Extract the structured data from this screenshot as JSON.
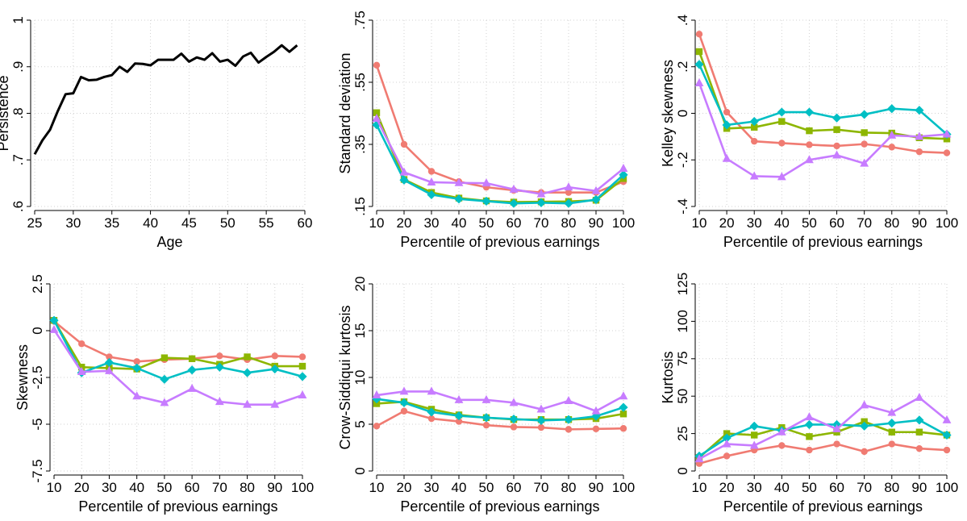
{
  "chart_data": [
    {
      "type": "line",
      "xlabel": "Age",
      "ylabel": "Persistence",
      "xlim": [
        25,
        60
      ],
      "ylim": [
        0.6,
        1
      ],
      "xticks": [
        25,
        30,
        35,
        40,
        45,
        50,
        55,
        60
      ],
      "xtick_labels": [
        "25",
        "30",
        "35",
        "40",
        "45",
        "50",
        "55",
        "60"
      ],
      "yticks": [
        0.6,
        0.7,
        0.8,
        0.9,
        1
      ],
      "ytick_labels": [
        ".6",
        ".7",
        ".8",
        ".9",
        "1"
      ],
      "grid": true,
      "x": [
        25,
        26,
        27,
        28,
        29,
        30,
        31,
        32,
        33,
        34,
        35,
        36,
        37,
        38,
        39,
        40,
        41,
        42,
        43,
        44,
        45,
        46,
        47,
        48,
        49,
        50,
        51,
        52,
        53,
        54,
        55,
        56,
        57,
        58,
        59
      ],
      "series": [
        {
          "values": [
            0.712,
            0.742,
            0.765,
            0.805,
            0.841,
            0.843,
            0.878,
            0.871,
            0.872,
            0.878,
            0.882,
            0.9,
            0.889,
            0.907,
            0.906,
            0.903,
            0.915,
            0.915,
            0.915,
            0.928,
            0.911,
            0.92,
            0.915,
            0.929,
            0.911,
            0.915,
            0.902,
            0.922,
            0.93,
            0.909,
            0.921,
            0.932,
            0.946,
            0.932,
            0.946
          ]
        }
      ]
    },
    {
      "type": "line",
      "xlabel": "Percentile of previous earnings",
      "ylabel": "Standard deviation",
      "xlim": [
        10,
        100
      ],
      "ylim": [
        0.15,
        0.75
      ],
      "xticks": [
        10,
        20,
        30,
        40,
        50,
        60,
        70,
        80,
        90,
        100
      ],
      "xtick_labels": [
        "10",
        "20",
        "30",
        "40",
        "50",
        "60",
        "70",
        "80",
        "90",
        "100"
      ],
      "yticks": [
        0.15,
        0.35,
        0.55,
        0.75
      ],
      "ytick_labels": [
        ".15",
        ".35",
        ".55",
        ".75"
      ],
      "grid": true,
      "x": [
        10,
        20,
        30,
        40,
        50,
        60,
        70,
        80,
        90,
        100
      ],
      "series": [
        {
          "color": "#f07b72",
          "marker": "circle",
          "values": [
            0.605,
            0.35,
            0.263,
            0.23,
            0.212,
            0.202,
            0.195,
            0.195,
            0.195,
            0.23
          ]
        },
        {
          "color": "#8db600",
          "marker": "square",
          "values": [
            0.452,
            0.237,
            0.195,
            0.177,
            0.168,
            0.164,
            0.165,
            0.166,
            0.17,
            0.24
          ]
        },
        {
          "color": "#00bfc4",
          "marker": "diamond",
          "values": [
            0.413,
            0.235,
            0.188,
            0.174,
            0.167,
            0.16,
            0.162,
            0.16,
            0.172,
            0.252
          ]
        },
        {
          "color": "#c77cff",
          "marker": "triangle",
          "values": [
            0.433,
            0.26,
            0.228,
            0.226,
            0.225,
            0.205,
            0.19,
            0.212,
            0.2,
            0.272
          ]
        }
      ]
    },
    {
      "type": "line",
      "xlabel": "Percentile of previous earnings",
      "ylabel": "Kelley skewness",
      "xlim": [
        10,
        100
      ],
      "ylim": [
        -0.4,
        0.4
      ],
      "xticks": [
        10,
        20,
        30,
        40,
        50,
        60,
        70,
        80,
        90,
        100
      ],
      "xtick_labels": [
        "10",
        "20",
        "30",
        "40",
        "50",
        "60",
        "70",
        "80",
        "90",
        "100"
      ],
      "yticks": [
        -0.4,
        -0.2,
        0,
        0.2,
        0.4
      ],
      "ytick_labels": [
        "-.4",
        "-.2",
        "0",
        ".2",
        ".4"
      ],
      "grid": true,
      "x": [
        10,
        20,
        30,
        40,
        50,
        60,
        70,
        80,
        90,
        100
      ],
      "series": [
        {
          "color": "#f07b72",
          "marker": "circle",
          "values": [
            0.34,
            0.005,
            -0.12,
            -0.128,
            -0.135,
            -0.14,
            -0.132,
            -0.145,
            -0.165,
            -0.17
          ]
        },
        {
          "color": "#8db600",
          "marker": "square",
          "values": [
            0.265,
            -0.065,
            -0.06,
            -0.035,
            -0.075,
            -0.07,
            -0.083,
            -0.085,
            -0.105,
            -0.11
          ]
        },
        {
          "color": "#00bfc4",
          "marker": "diamond",
          "values": [
            0.21,
            -0.05,
            -0.035,
            0.005,
            0.005,
            -0.02,
            -0.005,
            0.02,
            0.013,
            -0.09
          ]
        },
        {
          "color": "#c77cff",
          "marker": "triangle",
          "values": [
            0.13,
            -0.195,
            -0.27,
            -0.273,
            -0.2,
            -0.18,
            -0.215,
            -0.095,
            -0.1,
            -0.09
          ]
        }
      ]
    },
    {
      "type": "line",
      "xlabel": "Percentile of previous earnings",
      "ylabel": "Skewness",
      "xlim": [
        10,
        100
      ],
      "ylim": [
        -7.5,
        2.5
      ],
      "xticks": [
        10,
        20,
        30,
        40,
        50,
        60,
        70,
        80,
        90,
        100
      ],
      "xtick_labels": [
        "10",
        "20",
        "30",
        "40",
        "50",
        "60",
        "70",
        "80",
        "90",
        "100"
      ],
      "yticks": [
        -7.5,
        -5,
        -2.5,
        0,
        2.5
      ],
      "ytick_labels": [
        "-7.5",
        "-5",
        "-2.5",
        "0",
        "2.5"
      ],
      "grid": true,
      "x": [
        10,
        20,
        30,
        40,
        50,
        60,
        70,
        80,
        90,
        100
      ],
      "series": [
        {
          "color": "#f07b72",
          "marker": "circle",
          "values": [
            0.5,
            -0.7,
            -1.4,
            -1.65,
            -1.55,
            -1.5,
            -1.35,
            -1.55,
            -1.35,
            -1.4
          ]
        },
        {
          "color": "#8db600",
          "marker": "square",
          "values": [
            0.55,
            -1.95,
            -2.0,
            -2.05,
            -1.45,
            -1.5,
            -1.8,
            -1.4,
            -1.9,
            -1.9
          ]
        },
        {
          "color": "#00bfc4",
          "marker": "diamond",
          "values": [
            0.55,
            -2.25,
            -1.7,
            -2.0,
            -2.6,
            -2.1,
            -1.95,
            -2.25,
            -2.05,
            -2.45
          ]
        },
        {
          "color": "#c77cff",
          "marker": "triangle",
          "values": [
            0.05,
            -2.2,
            -2.15,
            -3.5,
            -3.85,
            -3.1,
            -3.8,
            -3.95,
            -3.95,
            -3.45
          ]
        }
      ]
    },
    {
      "type": "line",
      "xlabel": "Percentile of previous earnings",
      "ylabel": "Crow-Siddiqui kurtosis",
      "xlim": [
        10,
        100
      ],
      "ylim": [
        0,
        20
      ],
      "xticks": [
        10,
        20,
        30,
        40,
        50,
        60,
        70,
        80,
        90,
        100
      ],
      "xtick_labels": [
        "10",
        "20",
        "30",
        "40",
        "50",
        "60",
        "70",
        "80",
        "90",
        "100"
      ],
      "yticks": [
        0,
        5,
        10,
        15,
        20
      ],
      "ytick_labels": [
        "0",
        "5",
        "10",
        "15",
        "20"
      ],
      "grid": true,
      "x": [
        10,
        20,
        30,
        40,
        50,
        60,
        70,
        80,
        90,
        100
      ],
      "series": [
        {
          "color": "#f07b72",
          "marker": "circle",
          "values": [
            4.8,
            6.4,
            5.6,
            5.3,
            4.9,
            4.7,
            4.65,
            4.45,
            4.5,
            4.55
          ]
        },
        {
          "color": "#8db600",
          "marker": "square",
          "values": [
            7.2,
            7.4,
            6.6,
            6.0,
            5.7,
            5.5,
            5.5,
            5.5,
            5.6,
            6.1
          ]
        },
        {
          "color": "#00bfc4",
          "marker": "diamond",
          "values": [
            7.7,
            7.3,
            6.3,
            5.9,
            5.7,
            5.55,
            5.4,
            5.5,
            5.85,
            6.8
          ]
        },
        {
          "color": "#c77cff",
          "marker": "triangle",
          "values": [
            8.1,
            8.5,
            8.5,
            7.6,
            7.6,
            7.3,
            6.6,
            7.5,
            6.4,
            8.0
          ]
        }
      ]
    },
    {
      "type": "line",
      "xlabel": "Percentile of previous earnings",
      "ylabel": "Kurtosis",
      "xlim": [
        10,
        100
      ],
      "ylim": [
        0,
        125
      ],
      "xticks": [
        10,
        20,
        30,
        40,
        50,
        60,
        70,
        80,
        90,
        100
      ],
      "xtick_labels": [
        "10",
        "20",
        "30",
        "40",
        "50",
        "60",
        "70",
        "80",
        "90",
        "100"
      ],
      "yticks": [
        0,
        25,
        50,
        75,
        100,
        125
      ],
      "ytick_labels": [
        "0",
        "25",
        "50",
        "75",
        "100",
        "125"
      ],
      "grid": true,
      "x": [
        10,
        20,
        30,
        40,
        50,
        60,
        70,
        80,
        90,
        100
      ],
      "series": [
        {
          "color": "#f07b72",
          "marker": "circle",
          "values": [
            5,
            10,
            14,
            17,
            14,
            18,
            13,
            18,
            15,
            14
          ]
        },
        {
          "color": "#8db600",
          "marker": "square",
          "values": [
            9,
            25,
            24,
            29,
            23,
            26,
            33,
            26,
            26,
            24
          ]
        },
        {
          "color": "#00bfc4",
          "marker": "diamond",
          "values": [
            10,
            22,
            30,
            27,
            31,
            31,
            30,
            32,
            34,
            24
          ]
        },
        {
          "color": "#c77cff",
          "marker": "triangle",
          "values": [
            8,
            18,
            17,
            26,
            36,
            28,
            44,
            39,
            49,
            34
          ]
        }
      ]
    }
  ]
}
